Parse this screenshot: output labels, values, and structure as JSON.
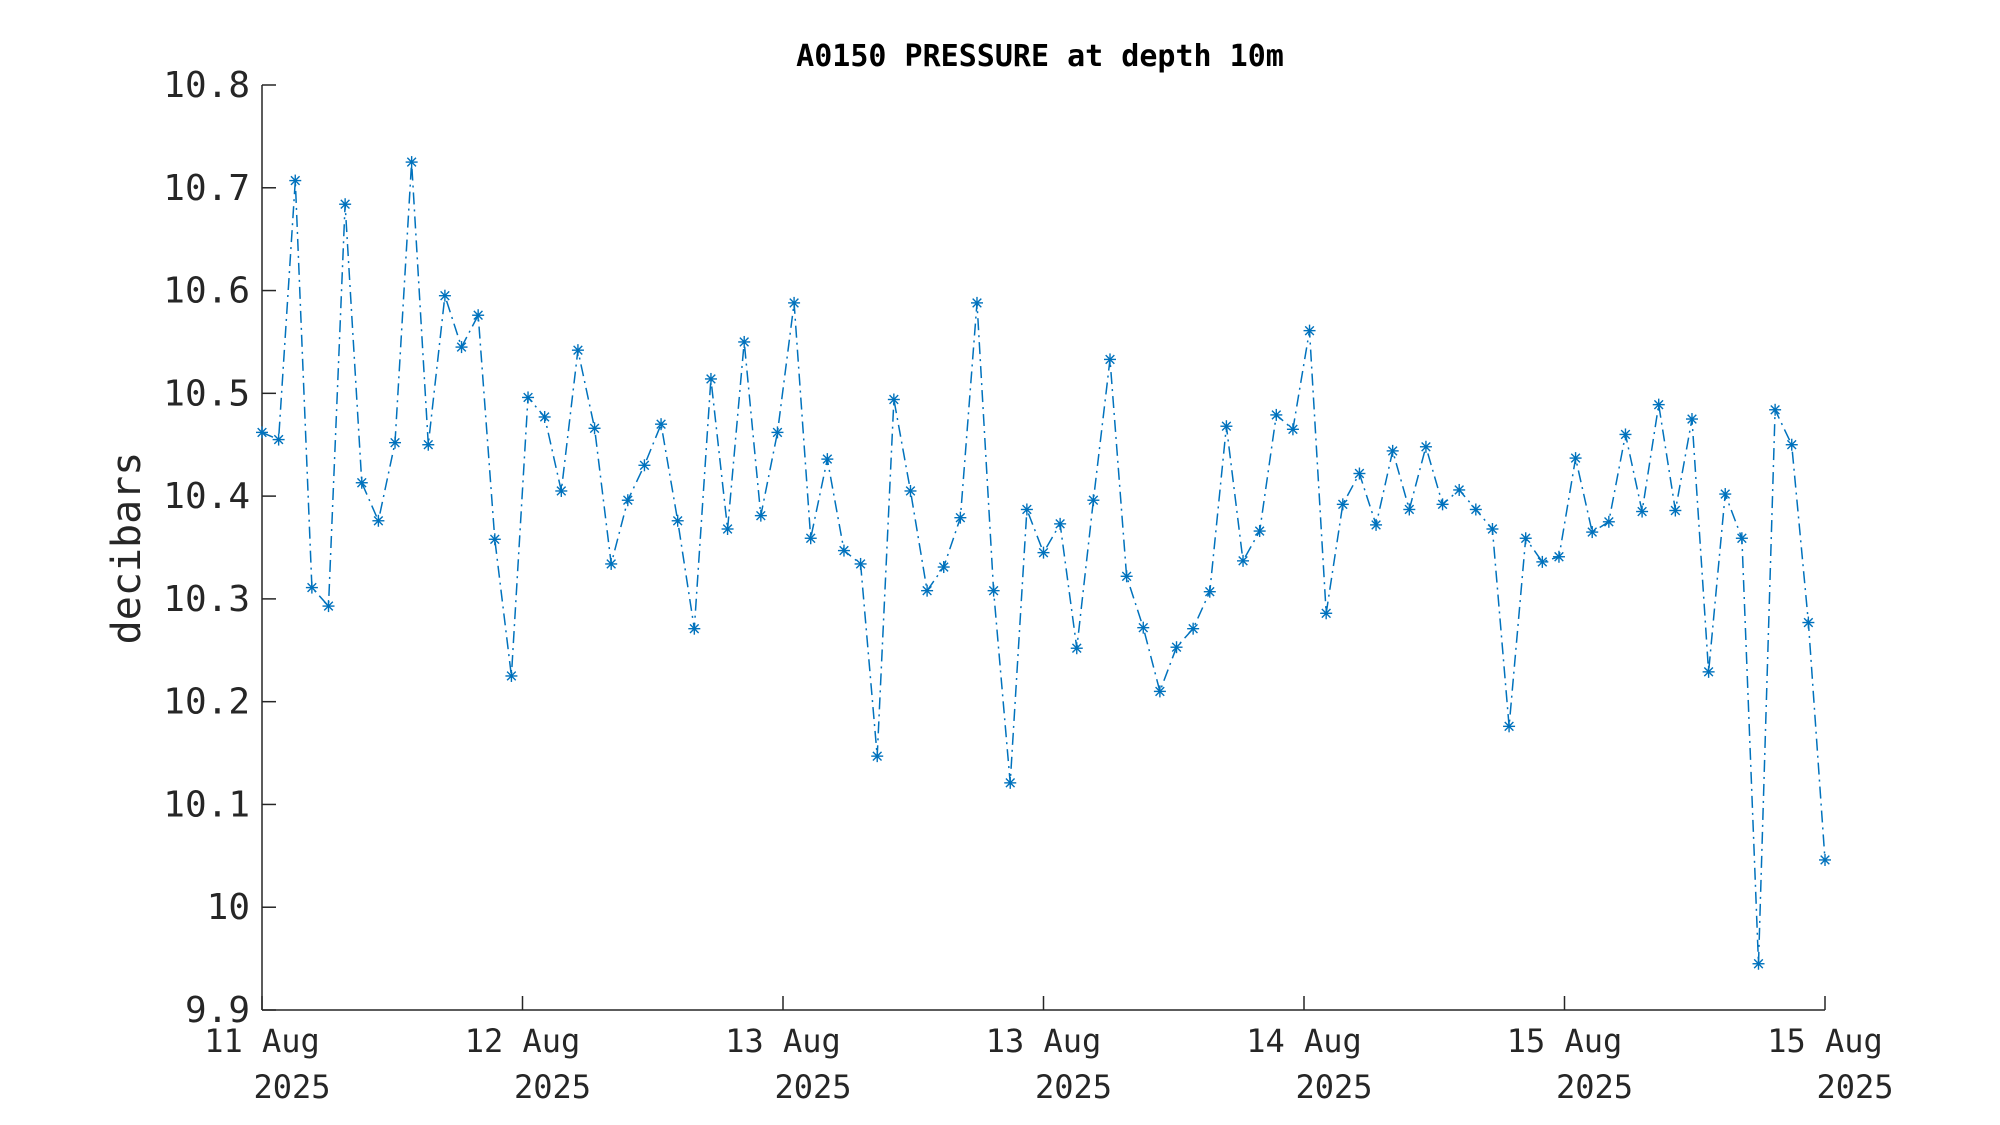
{
  "colors": {
    "series": "#0072BD",
    "axis": "#262626",
    "background": "#ffffff"
  },
  "chart_data": {
    "type": "line",
    "title": "A0150 PRESSURE at depth 10m",
    "xlabel": "",
    "ylabel": "decibars",
    "ylim": [
      9.9,
      10.8
    ],
    "yticks": [
      9.9,
      10,
      10.1,
      10.2,
      10.3,
      10.4,
      10.5,
      10.6,
      10.7,
      10.8
    ],
    "ytick_labels": [
      "9.9",
      "10",
      "10.1",
      "10.2",
      "10.3",
      "10.4",
      "10.5",
      "10.6",
      "10.7",
      "10.8"
    ],
    "xticks": [
      {
        "line1": "11 Aug",
        "line2": "2025"
      },
      {
        "line1": "12 Aug",
        "line2": "2025"
      },
      {
        "line1": "13 Aug",
        "line2": "2025"
      },
      {
        "line1": "13 Aug",
        "line2": "2025"
      },
      {
        "line1": "14 Aug",
        "line2": "2025"
      },
      {
        "line1": "15 Aug",
        "line2": "2025"
      },
      {
        "line1": "15 Aug",
        "line2": "2025"
      }
    ],
    "grid": false,
    "legend": "none",
    "marker": "asterisk",
    "line_style": "dash-dot",
    "series": [
      {
        "values": [
          10.462,
          10.455,
          10.707,
          10.311,
          10.293,
          10.684,
          10.413,
          10.376,
          10.452,
          10.725,
          10.45,
          10.595,
          10.545,
          10.576,
          10.358,
          10.225,
          10.496,
          10.477,
          10.405,
          10.542,
          10.466,
          10.334,
          10.396,
          10.43,
          10.47,
          10.376,
          10.271,
          10.514,
          10.368,
          10.55,
          10.381,
          10.462,
          10.588,
          10.359,
          10.436,
          10.347,
          10.334,
          10.147,
          10.494,
          10.405,
          10.308,
          10.331,
          10.379,
          10.588,
          10.308,
          10.121,
          10.387,
          10.345,
          10.373,
          10.252,
          10.396,
          10.533,
          10.322,
          10.272,
          10.21,
          10.253,
          10.271,
          10.307,
          10.468,
          10.337,
          10.366,
          10.479,
          10.465,
          10.561,
          10.286,
          10.392,
          10.422,
          10.372,
          10.444,
          10.387,
          10.448,
          10.392,
          10.406,
          10.387,
          10.368,
          10.176,
          10.359,
          10.336,
          10.341,
          10.437,
          10.365,
          10.375,
          10.46,
          10.385,
          10.489,
          10.386,
          10.475,
          10.229,
          10.402,
          10.359,
          9.945,
          10.484,
          10.45,
          10.277,
          10.046
        ]
      }
    ]
  }
}
